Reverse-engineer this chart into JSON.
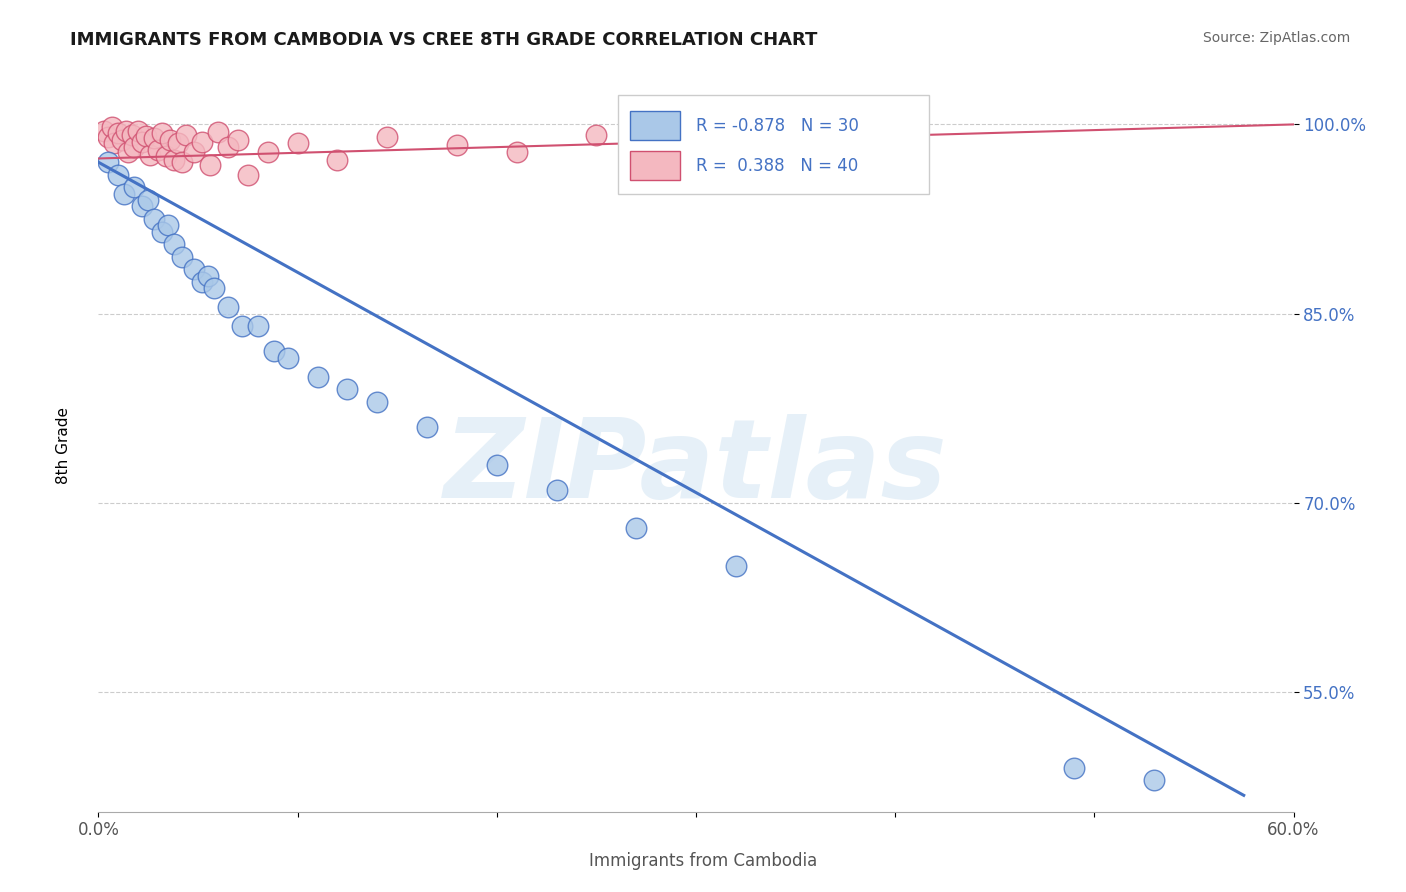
{
  "title": "IMMIGRANTS FROM CAMBODIA VS CREE 8TH GRADE CORRELATION CHART",
  "source": "Source: ZipAtlas.com",
  "xlabel": "Immigrants from Cambodia",
  "ylabel": "8th Grade",
  "xlim": [
    0.0,
    0.6
  ],
  "ylim": [
    0.455,
    1.035
  ],
  "xticks": [
    0.0,
    0.1,
    0.2,
    0.3,
    0.4,
    0.5,
    0.6
  ],
  "xtick_labels": [
    "0.0%",
    "",
    "",
    "",
    "",
    "",
    "60.0%"
  ],
  "ytick_positions": [
    1.0,
    0.85,
    0.7,
    0.55
  ],
  "ytick_labels": [
    "100.0%",
    "85.0%",
    "70.0%",
    "55.0%"
  ],
  "watermark": "ZIPatlas",
  "blue_color": "#aac8e8",
  "blue_edge_color": "#4472c4",
  "blue_line_color": "#4472c4",
  "pink_color": "#f4b8c0",
  "pink_edge_color": "#d05070",
  "pink_line_color": "#d05070",
  "blue_scatter_x": [
    0.005,
    0.01,
    0.013,
    0.018,
    0.022,
    0.025,
    0.028,
    0.032,
    0.035,
    0.038,
    0.042,
    0.048,
    0.052,
    0.055,
    0.058,
    0.065,
    0.072,
    0.08,
    0.088,
    0.095,
    0.11,
    0.125,
    0.14,
    0.165,
    0.2,
    0.23,
    0.27,
    0.32,
    0.49,
    0.53
  ],
  "blue_scatter_y": [
    0.97,
    0.96,
    0.945,
    0.95,
    0.935,
    0.94,
    0.925,
    0.915,
    0.92,
    0.905,
    0.895,
    0.885,
    0.875,
    0.88,
    0.87,
    0.855,
    0.84,
    0.84,
    0.82,
    0.815,
    0.8,
    0.79,
    0.78,
    0.76,
    0.73,
    0.71,
    0.68,
    0.65,
    0.49,
    0.48
  ],
  "pink_scatter_x": [
    0.003,
    0.005,
    0.007,
    0.008,
    0.01,
    0.012,
    0.014,
    0.015,
    0.017,
    0.018,
    0.02,
    0.022,
    0.024,
    0.026,
    0.028,
    0.03,
    0.032,
    0.034,
    0.036,
    0.038,
    0.04,
    0.042,
    0.044,
    0.048,
    0.052,
    0.056,
    0.06,
    0.065,
    0.07,
    0.075,
    0.085,
    0.1,
    0.12,
    0.145,
    0.18,
    0.21,
    0.25,
    0.29,
    0.34,
    0.35
  ],
  "pink_scatter_y": [
    0.995,
    0.99,
    0.998,
    0.985,
    0.993,
    0.988,
    0.995,
    0.978,
    0.992,
    0.982,
    0.995,
    0.986,
    0.991,
    0.976,
    0.989,
    0.98,
    0.993,
    0.975,
    0.988,
    0.972,
    0.985,
    0.97,
    0.992,
    0.978,
    0.986,
    0.968,
    0.994,
    0.982,
    0.988,
    0.96,
    0.978,
    0.985,
    0.972,
    0.99,
    0.984,
    0.978,
    0.992,
    0.988,
    0.998,
    0.985
  ],
  "blue_trend_x": [
    0.0,
    0.575
  ],
  "blue_trend_y": [
    0.97,
    0.468
  ],
  "pink_trend_x": [
    0.0,
    0.6
  ],
  "pink_trend_y": [
    0.973,
    1.0
  ]
}
